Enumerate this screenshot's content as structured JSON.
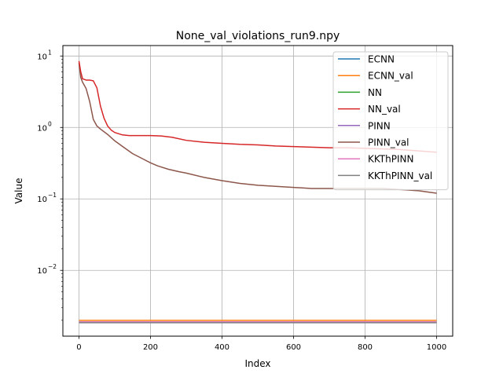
{
  "chart_data": {
    "type": "line",
    "title": "None_val_violations_run9.npy",
    "xlabel": "Index",
    "ylabel": "Value",
    "xlim": [
      -45,
      1045
    ],
    "ylim": [
      0.0012,
      14
    ],
    "yscale": "log",
    "grid": true,
    "legend_position": "top-right",
    "x_ticks": [
      {
        "value": 0,
        "label": "0"
      },
      {
        "value": 200,
        "label": "200"
      },
      {
        "value": 400,
        "label": "400"
      },
      {
        "value": 600,
        "label": "600"
      },
      {
        "value": 800,
        "label": "800"
      },
      {
        "value": 1000,
        "label": "1000"
      }
    ],
    "y_ticks": [
      {
        "value": 10,
        "base": "10",
        "exp": "1"
      },
      {
        "value": 1,
        "base": "10",
        "exp": "0"
      },
      {
        "value": 0.1,
        "base": "10",
        "exp": "−1"
      },
      {
        "value": 0.01,
        "base": "10",
        "exp": "−2"
      }
    ],
    "series": [
      {
        "name": "ECNN",
        "color": "#1f77b4",
        "x": [
          0,
          100,
          200,
          300,
          400,
          500,
          600,
          700,
          800,
          900,
          1000
        ],
        "y": [
          0.0019,
          0.0019,
          0.0019,
          0.0019,
          0.0019,
          0.0019,
          0.0019,
          0.0019,
          0.0019,
          0.0019,
          0.0019
        ]
      },
      {
        "name": "ECNN_val",
        "color": "#ff7f0e",
        "x": [
          0,
          100,
          200,
          300,
          400,
          500,
          600,
          700,
          800,
          900,
          1000
        ],
        "y": [
          0.002,
          0.002,
          0.002,
          0.002,
          0.002,
          0.002,
          0.002,
          0.002,
          0.002,
          0.002,
          0.002
        ]
      },
      {
        "name": "NN",
        "color": "#2ca02c",
        "x": [
          0,
          100,
          200,
          300,
          400,
          500,
          600,
          700,
          800,
          900,
          1000
        ],
        "y": [
          0.0019,
          0.0019,
          0.0019,
          0.0019,
          0.0019,
          0.0019,
          0.0019,
          0.0019,
          0.0019,
          0.0019,
          0.0019
        ]
      },
      {
        "name": "NN_val",
        "color": "#d62728",
        "x": [
          0,
          5,
          10,
          20,
          30,
          40,
          50,
          60,
          70,
          80,
          90,
          100,
          120,
          140,
          160,
          180,
          200,
          230,
          260,
          300,
          350,
          400,
          450,
          500,
          550,
          600,
          650,
          700,
          750,
          800,
          850,
          900,
          950,
          1000
        ],
        "y": [
          8.5,
          6.0,
          4.8,
          4.6,
          4.6,
          4.5,
          3.6,
          2.0,
          1.35,
          1.05,
          0.92,
          0.85,
          0.79,
          0.77,
          0.77,
          0.77,
          0.77,
          0.76,
          0.73,
          0.66,
          0.62,
          0.6,
          0.58,
          0.57,
          0.55,
          0.54,
          0.53,
          0.52,
          0.52,
          0.51,
          0.5,
          0.49,
          0.47,
          0.45
        ]
      },
      {
        "name": "PINN",
        "color": "#9467bd",
        "x": [
          0,
          100,
          200,
          300,
          400,
          500,
          600,
          700,
          800,
          900,
          1000
        ],
        "y": [
          0.0019,
          0.0019,
          0.0019,
          0.0019,
          0.0019,
          0.0019,
          0.0019,
          0.0019,
          0.0019,
          0.0019,
          0.0019
        ]
      },
      {
        "name": "PINN_val",
        "color": "#8c564b",
        "x": [
          0,
          5,
          10,
          20,
          30,
          40,
          50,
          60,
          80,
          100,
          120,
          150,
          180,
          200,
          220,
          250,
          280,
          300,
          350,
          400,
          450,
          500,
          550,
          600,
          650,
          700,
          750,
          800,
          850,
          900,
          950,
          1000
        ],
        "y": [
          8.0,
          5.0,
          4.3,
          3.5,
          2.3,
          1.3,
          1.05,
          0.95,
          0.8,
          0.65,
          0.55,
          0.43,
          0.36,
          0.32,
          0.29,
          0.26,
          0.24,
          0.23,
          0.2,
          0.18,
          0.165,
          0.155,
          0.15,
          0.145,
          0.14,
          0.14,
          0.14,
          0.14,
          0.14,
          0.135,
          0.13,
          0.12
        ]
      },
      {
        "name": "KKThPINN",
        "color": "#e377c2",
        "x": [
          0,
          100,
          200,
          300,
          400,
          500,
          600,
          700,
          800,
          900,
          1000
        ],
        "y": [
          0.0019,
          0.0019,
          0.0019,
          0.0019,
          0.0019,
          0.0019,
          0.0019,
          0.0019,
          0.0019,
          0.0019,
          0.0019
        ]
      },
      {
        "name": "KKThPINN_val",
        "color": "#7f7f7f",
        "x": [
          0,
          100,
          200,
          300,
          400,
          500,
          600,
          700,
          800,
          900,
          1000
        ],
        "y": [
          0.00185,
          0.00185,
          0.00185,
          0.00185,
          0.00185,
          0.00185,
          0.00185,
          0.00185,
          0.00185,
          0.00185,
          0.00185
        ]
      }
    ]
  }
}
